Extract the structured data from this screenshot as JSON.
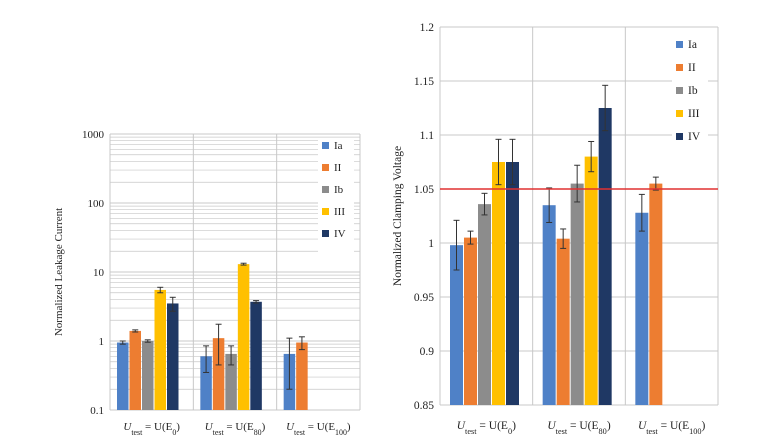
{
  "colors": {
    "Ia": "#4f81c7",
    "II": "#ed7d31",
    "Ib": "#8c8c8c",
    "III": "#ffc000",
    "IV": "#1f3864",
    "grid": "#c8c8c8",
    "threshold": "#e03030",
    "errorbar": "#333333"
  },
  "chart_data": [
    {
      "type": "bar",
      "scale": "log",
      "ylabel": "Normalized Leakage Current",
      "ylim": [
        0.1,
        1000
      ],
      "yticks": [
        "0.1",
        "1",
        "10",
        "100",
        "1000"
      ],
      "categories": [
        {
          "prefix": "U",
          "sub": "test",
          "mid": " = U(E",
          "sub2": "0",
          "suffix": ")"
        },
        {
          "prefix": "U",
          "sub": "test",
          "mid": " = U(E",
          "sub2": "80",
          "suffix": ")"
        },
        {
          "prefix": "U",
          "sub": "test",
          "mid": " = U(E",
          "sub2": "100",
          "suffix": ")"
        }
      ],
      "legend": [
        "Ia",
        "II",
        "Ib",
        "III",
        "IV"
      ],
      "series": [
        {
          "name": "Ia",
          "values": [
            0.95,
            0.6,
            0.65
          ],
          "errors": [
            0.05,
            0.25,
            0.45
          ]
        },
        {
          "name": "II",
          "values": [
            1.4,
            1.1,
            0.95
          ],
          "errors": [
            0.05,
            0.65,
            0.2
          ]
        },
        {
          "name": "Ib",
          "values": [
            1.0,
            0.65,
            null
          ],
          "errors": [
            0.04,
            0.2,
            null
          ]
        },
        {
          "name": "III",
          "values": [
            5.5,
            13.0,
            null
          ],
          "errors": [
            0.5,
            0.4,
            null
          ]
        },
        {
          "name": "IV",
          "values": [
            3.5,
            3.7,
            null
          ],
          "errors": [
            0.8,
            0.15,
            null
          ]
        }
      ]
    },
    {
      "type": "bar",
      "scale": "linear",
      "ylabel": "Normalized Clamping Voltage",
      "ylim": [
        0.85,
        1.2
      ],
      "yticks": [
        "0.85",
        "0.9",
        "0.95",
        "1",
        "1.05",
        "1.1",
        "1.15",
        "1.2"
      ],
      "threshold": 1.05,
      "categories": [
        {
          "prefix": "U",
          "sub": "test",
          "mid": " = U(E",
          "sub2": "0",
          "suffix": ")"
        },
        {
          "prefix": "U",
          "sub": "test",
          "mid": " = U(E",
          "sub2": "80",
          "suffix": ")"
        },
        {
          "prefix": "U",
          "sub": "test",
          "mid": " = U(E",
          "sub2": "100",
          "suffix": ")"
        }
      ],
      "legend": [
        "Ia",
        "II",
        "Ib",
        "III",
        "IV"
      ],
      "series": [
        {
          "name": "Ia",
          "values": [
            0.998,
            1.035,
            1.028
          ],
          "errors": [
            0.023,
            0.016,
            0.017
          ]
        },
        {
          "name": "II",
          "values": [
            1.005,
            1.004,
            1.055
          ],
          "errors": [
            0.006,
            0.009,
            0.006
          ]
        },
        {
          "name": "Ib",
          "values": [
            1.036,
            1.055,
            null
          ],
          "errors": [
            0.01,
            0.017,
            null
          ]
        },
        {
          "name": "III",
          "values": [
            1.075,
            1.08,
            null
          ],
          "errors": [
            0.021,
            0.014,
            null
          ]
        },
        {
          "name": "IV",
          "values": [
            1.075,
            1.125,
            null
          ],
          "errors": [
            0.021,
            0.021,
            null
          ]
        }
      ]
    }
  ]
}
